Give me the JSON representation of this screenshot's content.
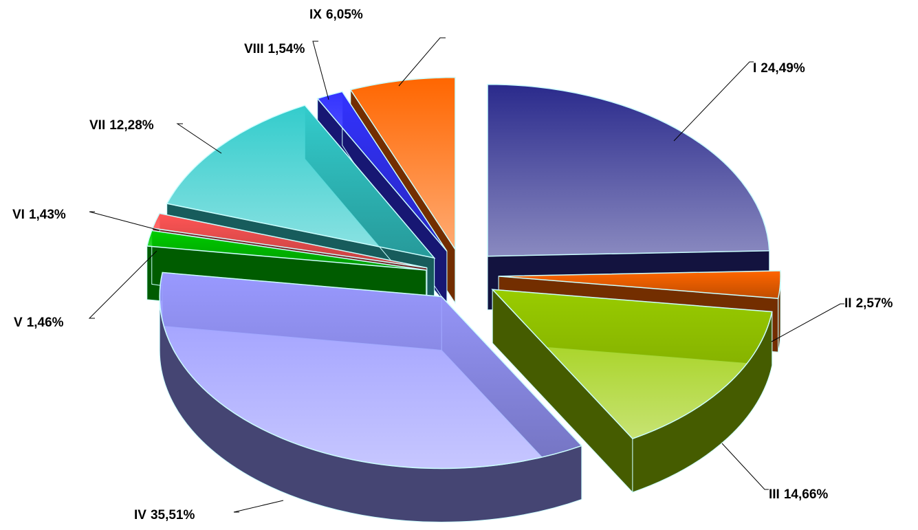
{
  "chart_data": {
    "type": "pie",
    "categories": [
      "I",
      "II",
      "III",
      "IV",
      "V",
      "VI",
      "VII",
      "VIII",
      "IX"
    ],
    "values": [
      24.49,
      2.57,
      14.66,
      35.51,
      1.46,
      1.43,
      12.28,
      1.54,
      6.05
    ],
    "value_labels": [
      "24,49%",
      "2,57%",
      "14,66%",
      "35,51%",
      "1,46%",
      "1,43%",
      "12,28%",
      "1,54%",
      "6,05%"
    ],
    "colors": [
      "#2a2a8c",
      "#ff6600",
      "#99cc00",
      "#9999ff",
      "#00cc00",
      "#ff5555",
      "#33cccc",
      "#3333ff",
      "#ff6600"
    ]
  }
}
